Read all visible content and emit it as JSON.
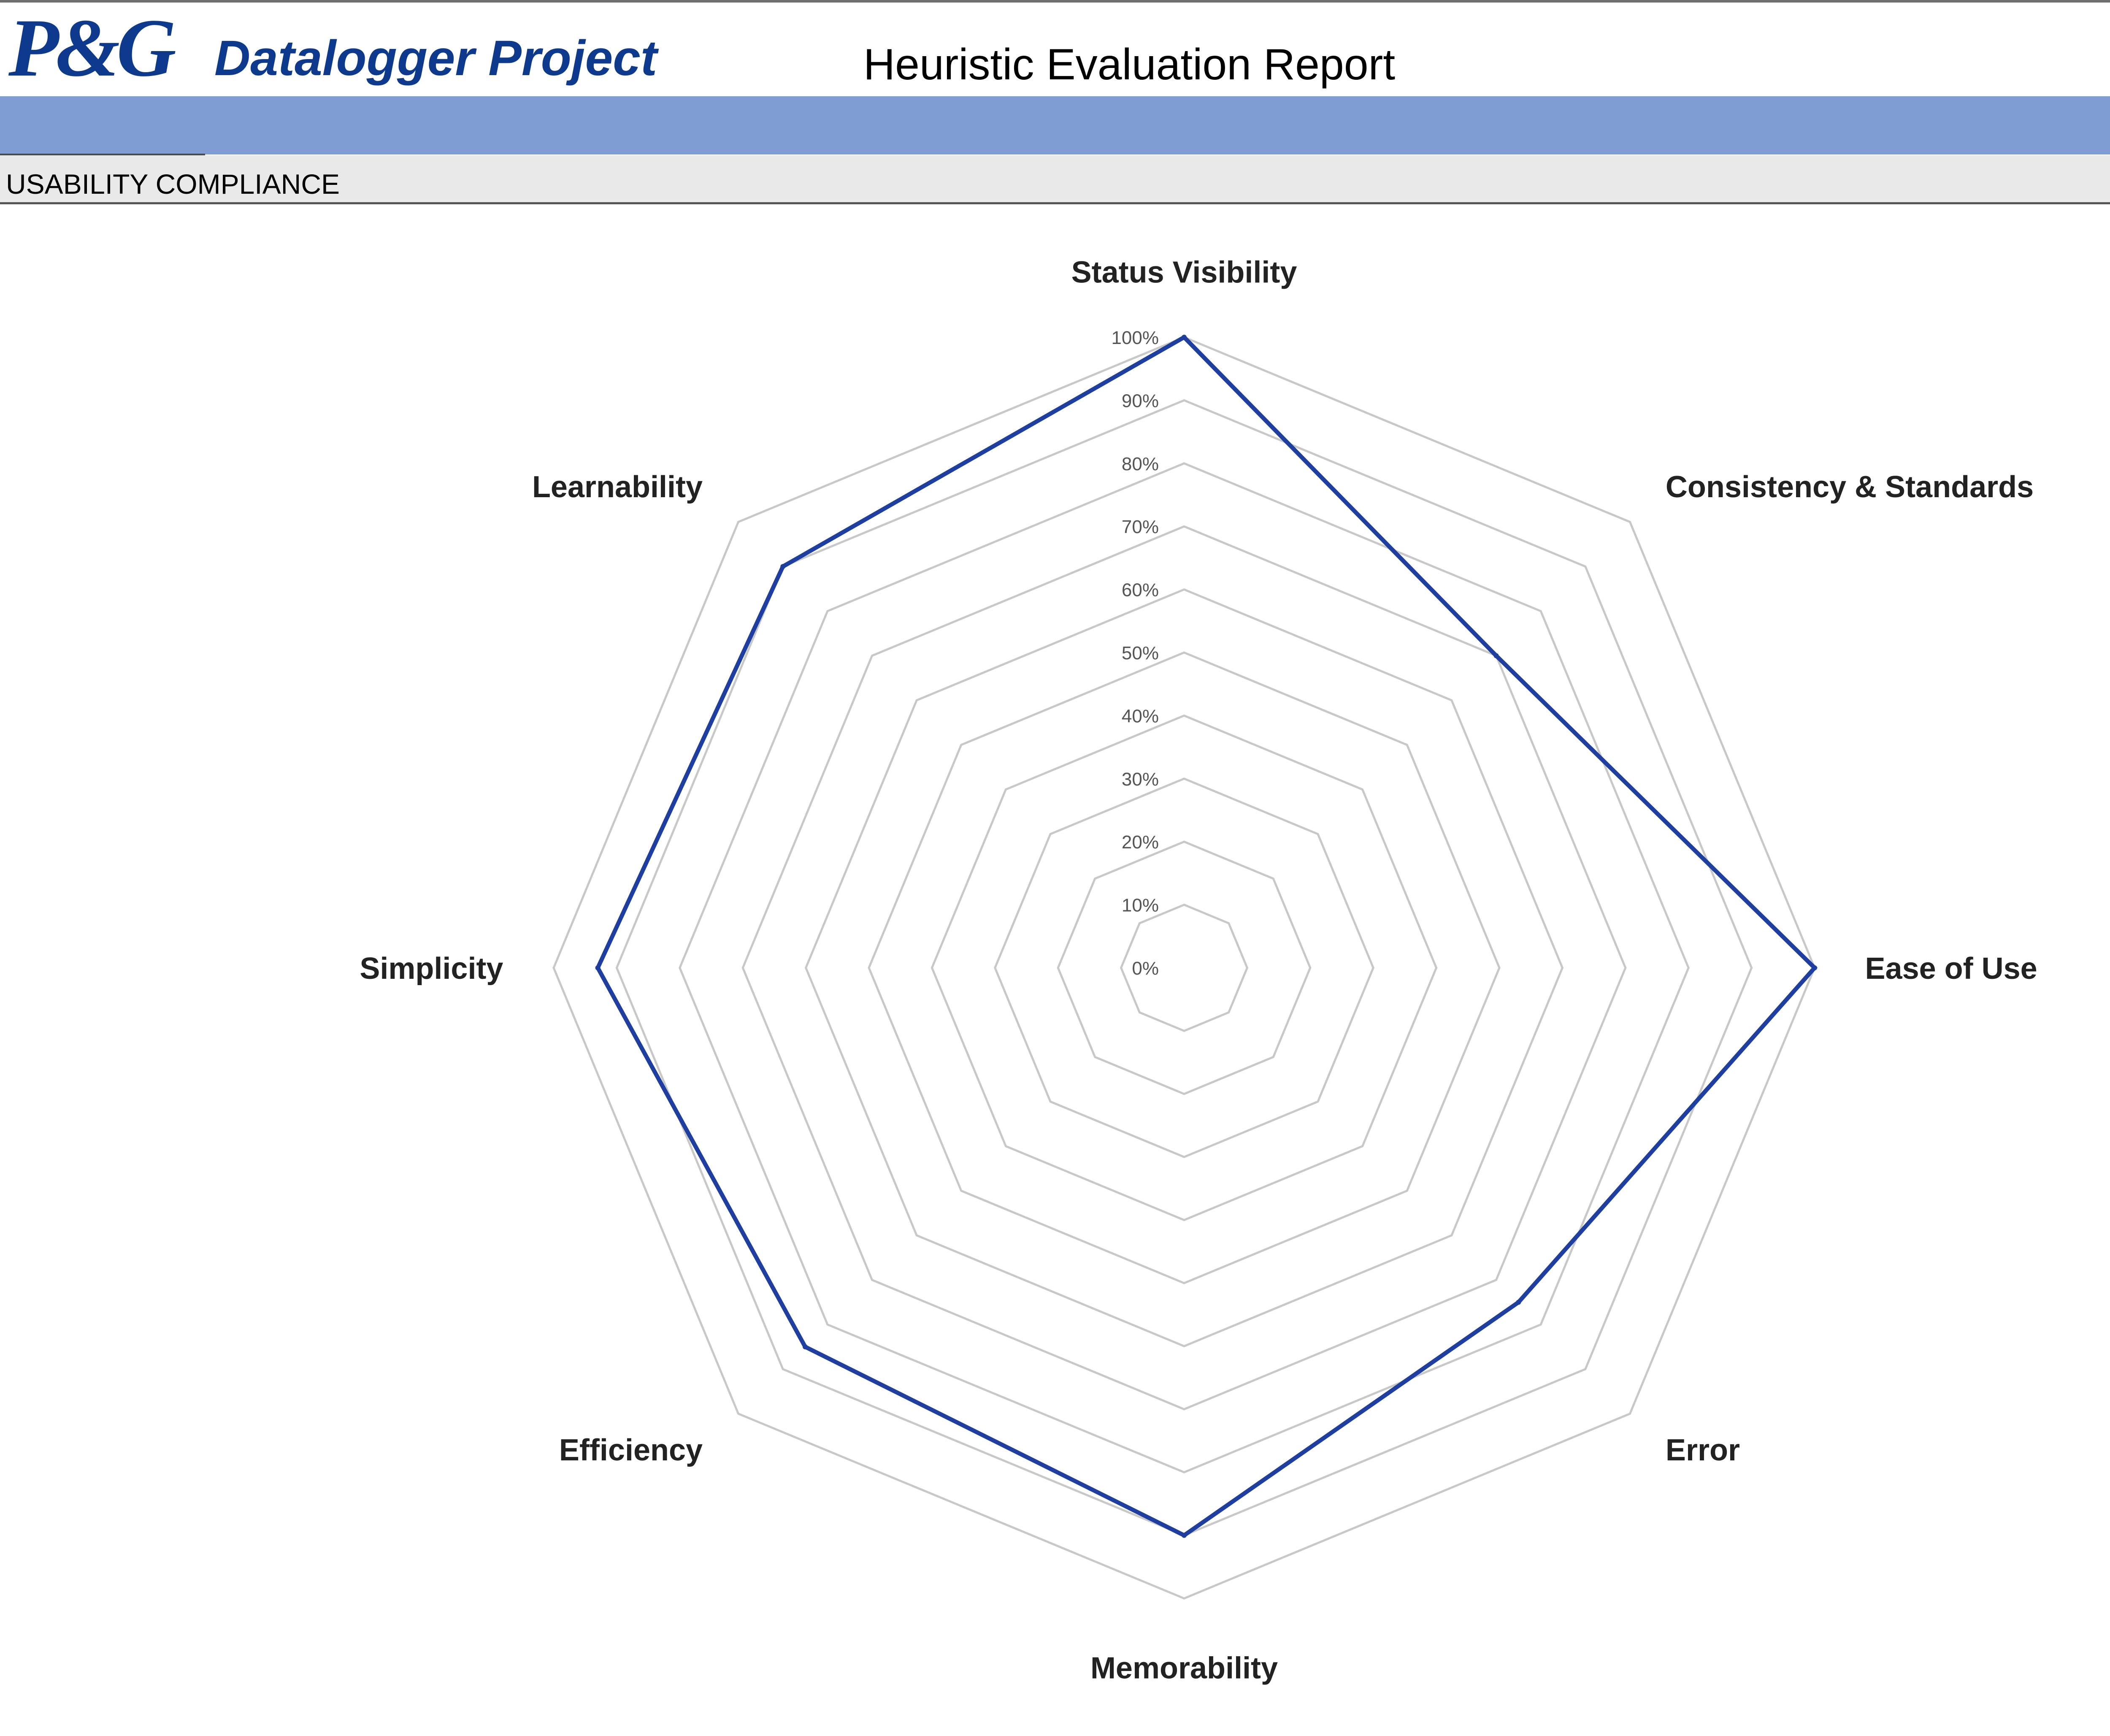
{
  "header": {
    "logo": "P&G",
    "project_title": "Datalogger Project",
    "report_title": "Heuristic Evaluation Report"
  },
  "section": {
    "label": "USABILITY COMPLIANCE"
  },
  "colors": {
    "brand": "#0d3a8c",
    "band": "#7f9cd3",
    "series": "#1f3fa0",
    "grid": "#c8c8c8"
  },
  "chart_data": {
    "type": "radar",
    "categories": [
      "Status Visibility",
      "Consistency & Standards",
      "Ease of Use",
      "Error",
      "Memorability",
      "Efficiency",
      "Simplicity",
      "Learnability"
    ],
    "series": [
      {
        "values": [
          1.0,
          0.7,
          1.0,
          0.75,
          0.9,
          0.85,
          0.93,
          0.9
        ]
      }
    ],
    "rlim": [
      0,
      1
    ],
    "tick_labels": [
      "0%",
      "10%",
      "20%",
      "30%",
      "40%",
      "50%",
      "60%",
      "70%",
      "80%",
      "90%",
      "100%"
    ],
    "grid": true,
    "legend": "none"
  }
}
